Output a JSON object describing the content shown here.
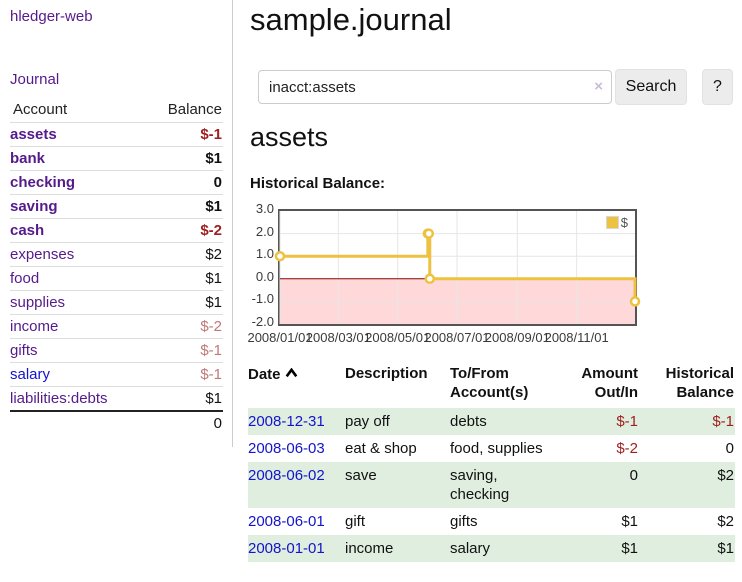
{
  "colors": {
    "visited_link_purple": "#551a8b",
    "link_blue": "#1414cc",
    "negative_strong": "#9e1f1f",
    "negative_soft": "#c17878",
    "row_stripe_green": "#dfeede",
    "series_yellow": "#edc240",
    "chart_negative_region": "#ffd9d9",
    "chart_zero_line": "#8b0000",
    "chart_border": "#545454",
    "button_bg": "#ececec"
  },
  "sidebar": {
    "brand": "hledger-web",
    "journal": "Journal",
    "accounts_table": {
      "headers": {
        "account": "Account",
        "balance": "Balance"
      },
      "rows": [
        {
          "name": "assets",
          "balance": "$-1"
        },
        {
          "name": "bank",
          "balance": "$1"
        },
        {
          "name": "checking",
          "balance": "0"
        },
        {
          "name": "saving",
          "balance": "$1"
        },
        {
          "name": "cash",
          "balance": "$-2"
        },
        {
          "name": "expenses",
          "balance": "$2"
        },
        {
          "name": "food",
          "balance": "$1"
        },
        {
          "name": "supplies",
          "balance": "$1"
        },
        {
          "name": "income",
          "balance": "$-2"
        },
        {
          "name": "gifts",
          "balance": "$-1"
        },
        {
          "name": "salary",
          "balance": "$-1"
        },
        {
          "name": "liabilities:debts",
          "balance": "$1"
        }
      ],
      "total": "0"
    }
  },
  "main": {
    "title": "sample.journal",
    "search": {
      "value": "inacct:assets",
      "clear_icon": "×",
      "search_button": "Search",
      "help_button": "?"
    },
    "account_heading": "assets",
    "chart_label": "Historical Balance:"
  },
  "chart_data": {
    "type": "line",
    "title": "Historical Balance:",
    "step": true,
    "xlim": [
      "2008-01-01",
      "2008-12-31"
    ],
    "ylim": [
      -2,
      3
    ],
    "grid": true,
    "legend_position": "top-right",
    "negative_region_color": "#ffd9d9",
    "zero_line_color": "#8b0000",
    "series": [
      {
        "name": "$",
        "color": "#edc240",
        "points": [
          [
            "2008-01-01",
            1
          ],
          [
            "2008-06-01",
            2
          ],
          [
            "2008-06-02",
            2
          ],
          [
            "2008-06-03",
            0
          ],
          [
            "2008-12-31",
            -1
          ]
        ]
      }
    ],
    "x_ticks": [
      {
        "date": "2008-01-01",
        "label": "2008/01/01"
      },
      {
        "date": "2008-03-01",
        "label": "2008/03/01"
      },
      {
        "date": "2008-05-01",
        "label": "2008/05/01"
      },
      {
        "date": "2008-07-01",
        "label": "2008/07/01"
      },
      {
        "date": "2008-09-01",
        "label": "2008/09/01"
      },
      {
        "date": "2008-11-01",
        "label": "2008/11/01"
      }
    ],
    "y_ticks": [
      "3.0",
      "2.0",
      "1.0",
      "0.0",
      "-1.0",
      "-2.0"
    ]
  },
  "register": {
    "headers": {
      "date": "Date",
      "description": "Description",
      "accounts": "To/From Account(s)",
      "amount": "Amount Out/In",
      "balance": "Historical Balance"
    },
    "rows": [
      {
        "date": "2008-12-31",
        "description": "pay off",
        "accounts": "debts",
        "amount": "$-1",
        "balance": "$-1"
      },
      {
        "date": "2008-06-03",
        "description": "eat & shop",
        "accounts": "food, supplies",
        "amount": "$-2",
        "balance": "0"
      },
      {
        "date": "2008-06-02",
        "description": "save",
        "accounts": "saving, checking",
        "amount": "0",
        "balance": "$2"
      },
      {
        "date": "2008-06-01",
        "description": "gift",
        "accounts": "gifts",
        "amount": "$1",
        "balance": "$2"
      },
      {
        "date": "2008-01-01",
        "description": "income",
        "accounts": "salary",
        "amount": "$1",
        "balance": "$1"
      }
    ]
  }
}
